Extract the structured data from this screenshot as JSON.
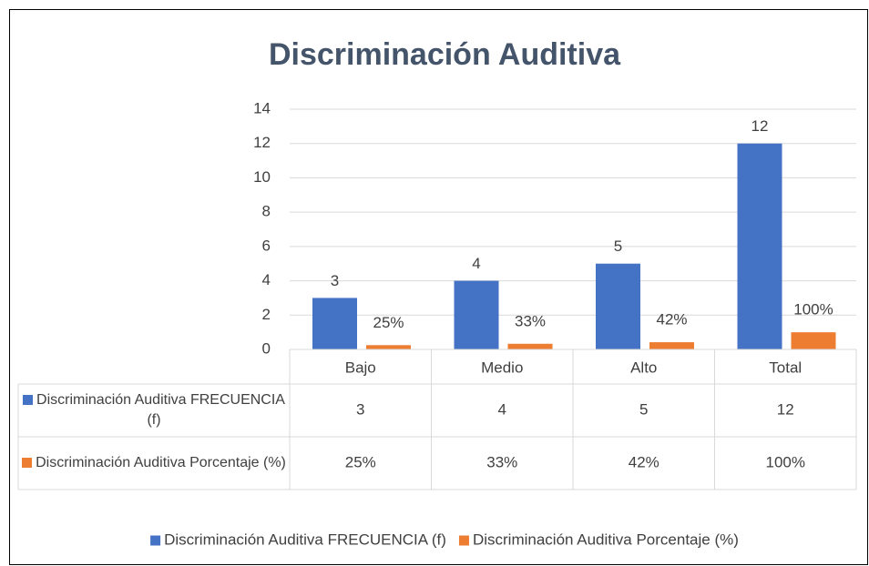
{
  "chart_data": {
    "type": "bar",
    "title": "Discriminación Auditiva",
    "categories": [
      "Bajo",
      "Medio",
      "Alto",
      "Total"
    ],
    "series": [
      {
        "name": "Discriminación Auditiva FRECUENCIA (f)",
        "color": "#4472c4",
        "values": [
          3,
          4,
          5,
          12
        ]
      },
      {
        "name": "Discriminación Auditiva Porcentaje (%)",
        "color": "#ed7d31",
        "values": [
          0.25,
          0.33,
          0.42,
          1
        ],
        "value_labels": [
          "25%",
          "33%",
          "42%",
          "100%"
        ]
      }
    ],
    "ylim": [
      0,
      14
    ],
    "yticks": [
      0,
      2,
      4,
      6,
      8,
      10,
      12,
      14
    ],
    "grid": true,
    "legend": "bottom",
    "data_table": true
  }
}
